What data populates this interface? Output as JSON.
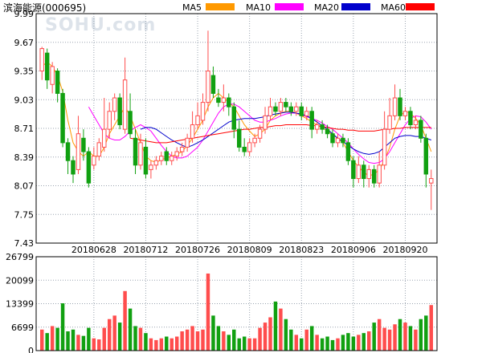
{
  "header": {
    "title": "滨海能源(000695)",
    "watermark": "SOHU.com",
    "legend": [
      {
        "label": "MA5",
        "color": "#ff9900"
      },
      {
        "label": "MA10",
        "color": "#ff00ff"
      },
      {
        "label": "MA20",
        "color": "#0000cc"
      },
      {
        "label": "MA60",
        "color": "#ff0000"
      }
    ]
  },
  "colors": {
    "up": "#ff4d4d",
    "down": "#11a011",
    "grid": "#9aa4b0",
    "frame": "#000000"
  },
  "chart_data": {
    "type": "candlestick",
    "price_ylim": [
      7.43,
      9.99
    ],
    "price_ticks": [
      "9.99",
      "9.67",
      "9.35",
      "9.03",
      "8.71",
      "8.39",
      "8.07",
      "7.75",
      "7.43"
    ],
    "volume_ylim": [
      0,
      26799
    ],
    "volume_ticks": [
      "26799",
      "20099",
      "13399",
      "6699",
      "0"
    ],
    "x_labels": [
      {
        "index": 10,
        "label": "20180628"
      },
      {
        "index": 20,
        "label": "20180712"
      },
      {
        "index": 30,
        "label": "20180726"
      },
      {
        "index": 40,
        "label": "20180809"
      },
      {
        "index": 50,
        "label": "20180823"
      },
      {
        "index": 60,
        "label": "20180906"
      },
      {
        "index": 70,
        "label": "20180920"
      }
    ],
    "candles": [
      [
        9.35,
        9.6,
        9.62,
        9.25,
        6000
      ],
      [
        9.55,
        9.25,
        9.6,
        9.15,
        5000
      ],
      [
        9.2,
        9.4,
        9.45,
        9.1,
        7000
      ],
      [
        9.35,
        9.1,
        9.38,
        9.0,
        6500
      ],
      [
        9.1,
        8.55,
        9.15,
        8.5,
        13500
      ],
      [
        8.55,
        8.35,
        8.6,
        8.2,
        5500
      ],
      [
        8.35,
        8.2,
        8.4,
        8.1,
        6000
      ],
      [
        8.25,
        8.65,
        8.85,
        8.2,
        4500
      ],
      [
        8.6,
        8.45,
        8.7,
        8.35,
        4200
      ],
      [
        8.45,
        8.1,
        8.5,
        8.05,
        6500
      ],
      [
        8.3,
        8.4,
        8.5,
        8.25,
        3500
      ],
      [
        8.4,
        8.55,
        8.6,
        8.35,
        3200
      ],
      [
        8.5,
        8.7,
        9.05,
        8.45,
        6500
      ],
      [
        8.7,
        8.9,
        9.0,
        8.6,
        9000
      ],
      [
        8.9,
        9.05,
        9.1,
        8.8,
        10000
      ],
      [
        9.05,
        8.75,
        9.1,
        8.7,
        8000
      ],
      [
        8.7,
        9.25,
        9.5,
        8.65,
        17000
      ],
      [
        8.9,
        8.65,
        9.1,
        8.6,
        12000
      ],
      [
        8.6,
        8.3,
        8.7,
        8.2,
        7000
      ],
      [
        8.3,
        8.55,
        8.65,
        8.25,
        6500
      ],
      [
        8.5,
        8.2,
        8.6,
        8.15,
        5000
      ],
      [
        8.25,
        8.3,
        8.35,
        8.15,
        3500
      ],
      [
        8.3,
        8.35,
        8.4,
        8.25,
        3000
      ],
      [
        8.35,
        8.4,
        8.45,
        8.3,
        3500
      ],
      [
        8.45,
        8.35,
        8.5,
        8.3,
        4000
      ],
      [
        8.35,
        8.4,
        8.45,
        8.3,
        3500
      ],
      [
        8.4,
        8.45,
        8.5,
        8.35,
        4000
      ],
      [
        8.45,
        8.5,
        8.55,
        8.4,
        5500
      ],
      [
        8.5,
        8.6,
        8.65,
        8.45,
        6000
      ],
      [
        8.6,
        8.75,
        8.9,
        8.55,
        7000
      ],
      [
        8.75,
        8.85,
        9.0,
        8.7,
        5500
      ],
      [
        8.8,
        9.0,
        9.1,
        8.75,
        6000
      ],
      [
        9.0,
        9.35,
        9.8,
        8.9,
        22000
      ],
      [
        9.3,
        9.1,
        9.4,
        9.05,
        10000
      ],
      [
        9.05,
        9.0,
        9.15,
        8.95,
        7000
      ],
      [
        9.0,
        9.05,
        9.2,
        8.9,
        5500
      ],
      [
        9.05,
        8.95,
        9.1,
        8.85,
        4500
      ],
      [
        8.95,
        8.7,
        9.0,
        8.6,
        6000
      ],
      [
        8.7,
        8.5,
        8.8,
        8.45,
        3500
      ],
      [
        8.5,
        8.45,
        8.6,
        8.4,
        4000
      ],
      [
        8.45,
        8.55,
        8.6,
        8.4,
        3500
      ],
      [
        8.55,
        8.6,
        8.65,
        8.5,
        3500
      ],
      [
        8.6,
        8.7,
        8.75,
        8.55,
        6500
      ],
      [
        8.7,
        8.85,
        8.95,
        8.65,
        8000
      ],
      [
        8.85,
        8.95,
        9.05,
        8.8,
        9500
      ],
      [
        8.95,
        8.9,
        9.0,
        8.85,
        14000
      ],
      [
        8.9,
        9.0,
        9.05,
        8.85,
        12000
      ],
      [
        9.0,
        8.95,
        9.05,
        8.9,
        9000
      ],
      [
        8.95,
        8.9,
        9.0,
        8.85,
        6000
      ],
      [
        8.9,
        8.95,
        9.0,
        8.85,
        4500
      ],
      [
        8.95,
        8.85,
        9.0,
        8.8,
        3500
      ],
      [
        8.85,
        8.9,
        8.95,
        8.8,
        6000
      ],
      [
        8.9,
        8.7,
        8.95,
        8.6,
        7000
      ],
      [
        8.7,
        8.75,
        8.8,
        8.65,
        4500
      ],
      [
        8.75,
        8.7,
        8.8,
        8.65,
        3500
      ],
      [
        8.7,
        8.65,
        8.75,
        8.6,
        4000
      ],
      [
        8.65,
        8.55,
        8.7,
        8.5,
        3000
      ],
      [
        8.55,
        8.6,
        8.65,
        8.5,
        3500
      ],
      [
        8.6,
        8.55,
        8.65,
        8.5,
        4500
      ],
      [
        8.55,
        8.35,
        8.6,
        8.3,
        5000
      ],
      [
        8.35,
        8.15,
        8.4,
        8.05,
        4000
      ],
      [
        8.15,
        8.3,
        8.4,
        8.1,
        4500
      ],
      [
        8.3,
        8.15,
        8.35,
        8.05,
        5000
      ],
      [
        8.15,
        8.25,
        8.3,
        8.05,
        5500
      ],
      [
        8.25,
        8.1,
        8.3,
        8.05,
        8000
      ],
      [
        8.1,
        8.3,
        8.45,
        8.05,
        9000
      ],
      [
        8.3,
        8.7,
        8.9,
        8.25,
        6500
      ],
      [
        8.7,
        8.85,
        9.05,
        8.65,
        6000
      ],
      [
        8.85,
        9.05,
        9.2,
        8.8,
        7500
      ],
      [
        9.05,
        8.85,
        9.15,
        8.8,
        9000
      ],
      [
        8.85,
        8.9,
        8.95,
        8.8,
        8000
      ],
      [
        8.9,
        8.75,
        8.95,
        8.7,
        7000
      ],
      [
        8.75,
        8.8,
        8.85,
        8.7,
        6000
      ],
      [
        8.8,
        8.6,
        8.85,
        8.55,
        9000
      ],
      [
        8.6,
        8.2,
        8.65,
        8.05,
        10000
      ],
      [
        8.1,
        8.15,
        8.25,
        7.8,
        13000
      ]
    ],
    "ma5": [
      9.4,
      9.45,
      9.4,
      9.3,
      9.12,
      8.8,
      8.55,
      8.45,
      8.4,
      8.45,
      8.4,
      8.4,
      8.5,
      8.65,
      8.75,
      8.85,
      8.95,
      8.85,
      8.7,
      8.55,
      8.4,
      8.35,
      8.33,
      8.36,
      8.38,
      8.4,
      8.42,
      8.45,
      8.52,
      8.6,
      8.7,
      8.8,
      8.95,
      9.05,
      9.1,
      9.05,
      9.0,
      8.95,
      8.85,
      8.75,
      8.68,
      8.62,
      8.65,
      8.7,
      8.8,
      8.85,
      8.88,
      8.9,
      8.9,
      8.88,
      8.85,
      8.82,
      8.78,
      8.75,
      8.72,
      8.68,
      8.64,
      8.6,
      8.55,
      8.45,
      8.35,
      8.28,
      8.22,
      8.18,
      8.2,
      8.25,
      8.35,
      8.5,
      8.7,
      8.85,
      8.9,
      8.88,
      8.82,
      8.75,
      8.6,
      8.45
    ],
    "ma10": [
      null,
      null,
      null,
      null,
      null,
      null,
      null,
      null,
      null,
      8.95,
      8.85,
      8.75,
      8.65,
      8.6,
      8.58,
      8.58,
      8.62,
      8.68,
      8.72,
      8.75,
      8.72,
      8.68,
      8.6,
      8.52,
      8.45,
      8.4,
      8.38,
      8.38,
      8.4,
      8.45,
      8.5,
      8.58,
      8.68,
      8.78,
      8.88,
      8.95,
      8.98,
      8.98,
      8.95,
      8.9,
      8.85,
      8.8,
      8.78,
      8.78,
      8.8,
      8.82,
      8.85,
      8.87,
      8.88,
      8.88,
      8.86,
      8.84,
      8.82,
      8.8,
      8.77,
      8.73,
      8.7,
      8.65,
      8.6,
      8.55,
      8.48,
      8.42,
      8.37,
      8.33,
      8.32,
      8.33,
      8.37,
      8.45,
      8.55,
      8.65,
      8.75,
      8.82,
      8.85,
      8.84,
      8.78,
      8.7
    ],
    "ma20": [
      null,
      null,
      null,
      null,
      null,
      null,
      null,
      null,
      null,
      null,
      null,
      null,
      null,
      null,
      null,
      null,
      null,
      null,
      null,
      8.7,
      8.72,
      8.72,
      8.7,
      8.66,
      8.62,
      8.58,
      8.55,
      8.52,
      8.5,
      8.52,
      8.55,
      8.58,
      8.62,
      8.66,
      8.7,
      8.74,
      8.78,
      8.8,
      8.81,
      8.82,
      8.82,
      8.82,
      8.83,
      8.84,
      8.86,
      8.87,
      8.88,
      8.89,
      8.89,
      8.88,
      8.87,
      8.85,
      8.82,
      8.78,
      8.74,
      8.7,
      8.65,
      8.6,
      8.56,
      8.52,
      8.48,
      8.45,
      8.43,
      8.42,
      8.43,
      8.45,
      8.5,
      8.55,
      8.6,
      8.62,
      8.63,
      8.63,
      8.62,
      8.62,
      8.6,
      8.58
    ],
    "ma60": [
      null,
      null,
      null,
      null,
      null,
      null,
      null,
      null,
      null,
      null,
      null,
      null,
      null,
      null,
      null,
      null,
      null,
      8.6,
      8.59,
      8.58,
      8.57,
      8.56,
      8.55,
      8.55,
      8.55,
      8.56,
      8.57,
      8.58,
      8.59,
      8.6,
      8.61,
      8.62,
      8.63,
      8.64,
      8.65,
      8.66,
      8.67,
      8.68,
      8.69,
      8.7,
      8.7,
      8.71,
      8.72,
      8.72,
      8.73,
      8.74,
      8.74,
      8.75,
      8.75,
      8.75,
      8.75,
      8.75,
      8.74,
      8.74,
      8.73,
      8.72,
      8.71,
      8.7,
      8.7,
      8.69,
      8.69,
      8.68,
      8.68,
      8.68,
      8.68,
      8.69,
      8.7,
      8.7,
      8.71,
      8.71,
      8.72,
      8.72,
      8.72,
      8.72,
      8.72,
      8.72
    ]
  }
}
